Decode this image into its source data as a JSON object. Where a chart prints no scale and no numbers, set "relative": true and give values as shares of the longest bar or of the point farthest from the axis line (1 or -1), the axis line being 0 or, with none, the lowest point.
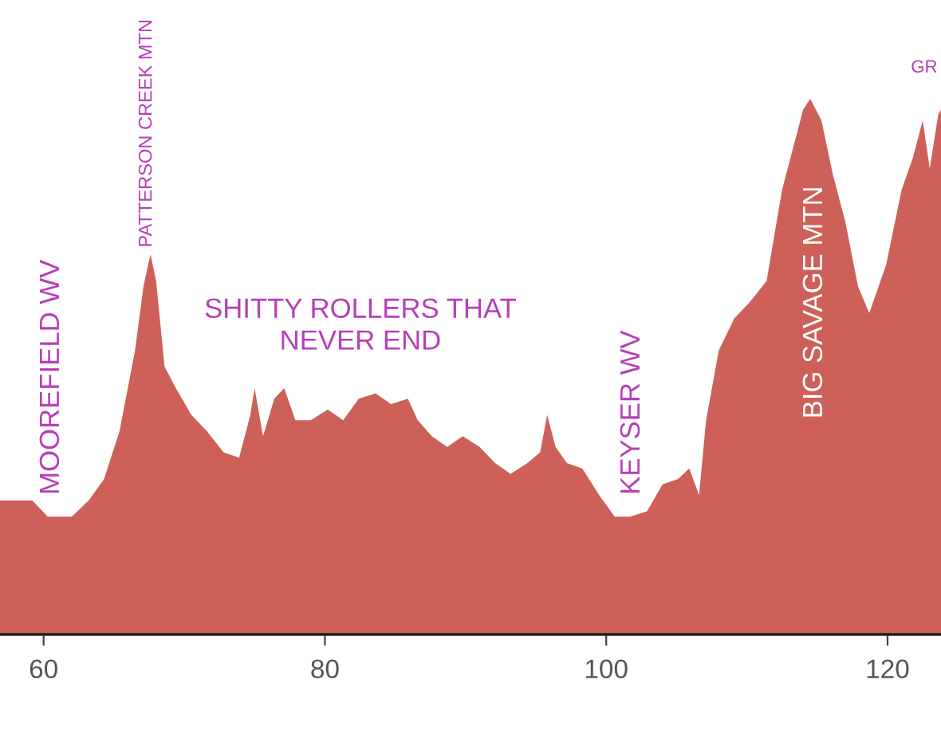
{
  "chart_data": {
    "type": "area",
    "relative": true,
    "color": "#cd6159",
    "x": [
      56.9,
      59.2,
      60.3,
      62.0,
      63.2,
      64.3,
      65.4,
      66.5,
      67.1,
      67.6,
      68.0,
      68.6,
      69.4,
      70.5,
      71.6,
      72.8,
      73.9,
      74.7,
      75.0,
      75.6,
      76.4,
      77.1,
      77.9,
      79.0,
      80.2,
      81.3,
      82.4,
      83.6,
      84.7,
      85.9,
      86.6,
      87.6,
      88.7,
      89.8,
      91.0,
      92.1,
      93.2,
      94.4,
      95.3,
      95.8,
      96.4,
      97.2,
      98.3,
      99.5,
      100.6,
      101.7,
      102.9,
      104.0,
      105.1,
      105.9,
      106.6,
      107.1,
      108.0,
      109.1,
      110.2,
      111.4,
      112.5,
      113.2,
      114.0,
      114.5,
      115.3,
      116.1,
      117.0,
      117.9,
      118.7,
      119.9,
      121.0,
      121.8,
      122.5,
      123.0,
      123.6,
      123.8
    ],
    "values": [
      0.25,
      0.25,
      0.22,
      0.22,
      0.25,
      0.29,
      0.38,
      0.53,
      0.65,
      0.71,
      0.66,
      0.5,
      0.46,
      0.41,
      0.38,
      0.34,
      0.33,
      0.41,
      0.46,
      0.37,
      0.44,
      0.46,
      0.4,
      0.4,
      0.42,
      0.4,
      0.44,
      0.45,
      0.43,
      0.44,
      0.4,
      0.37,
      0.35,
      0.37,
      0.35,
      0.32,
      0.3,
      0.32,
      0.34,
      0.41,
      0.35,
      0.32,
      0.31,
      0.26,
      0.22,
      0.22,
      0.23,
      0.28,
      0.29,
      0.31,
      0.26,
      0.4,
      0.53,
      0.59,
      0.62,
      0.66,
      0.83,
      0.9,
      0.98,
      1,
      0.96,
      0.86,
      0.77,
      0.65,
      0.6,
      0.69,
      0.83,
      0.89,
      0.96,
      0.87,
      0.97,
      0.98
    ],
    "xlim": [
      56.9,
      123.8
    ],
    "xticks": [
      60,
      80,
      100,
      120
    ],
    "annotations": [
      "MOOREFIELD WV",
      "PATTERSON CREEK MTN",
      "SHITTY ROLLERS THAT\nNEVER END",
      "KEYSER WV",
      "BIG SAVAGE MTN",
      "GR"
    ]
  }
}
